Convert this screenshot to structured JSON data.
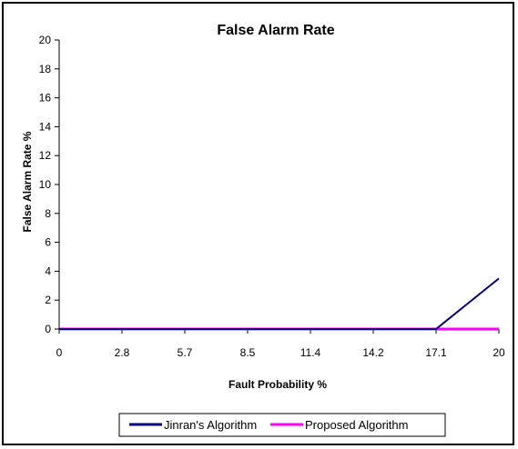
{
  "chart_data": {
    "type": "line",
    "title": "False Alarm Rate",
    "xlabel": "Fault Probability %",
    "ylabel": "False Alarm Rate  %",
    "categories": [
      "0",
      "2.8",
      "5.7",
      "8.5",
      "11.4",
      "14.2",
      "17.1",
      "20"
    ],
    "ylim": [
      0,
      20
    ],
    "yticks": [
      0,
      2,
      4,
      6,
      8,
      10,
      12,
      14,
      16,
      18,
      20
    ],
    "grid": false,
    "legend_position": "bottom",
    "series": [
      {
        "name": "Jinran's Algorithm",
        "color": "#000080",
        "values": [
          0,
          0,
          0,
          0,
          0,
          0,
          0,
          3.5
        ]
      },
      {
        "name": "Proposed Algorithm",
        "color": "#FF00FF",
        "values": [
          0,
          0,
          0,
          0,
          0,
          0,
          0,
          0
        ]
      }
    ]
  }
}
